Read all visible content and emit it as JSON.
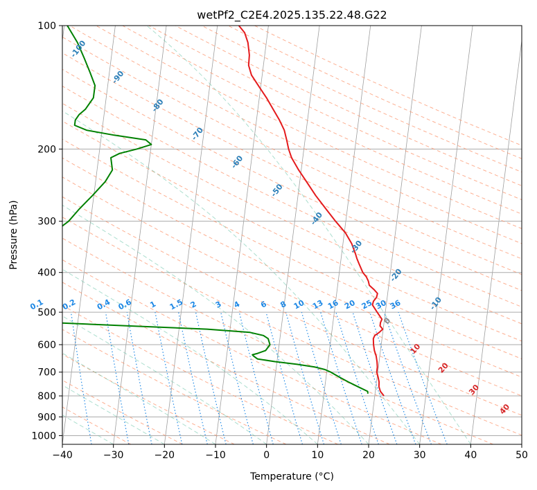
{
  "chart_data": {
    "type": "skew-t",
    "title": "wetPf2_C2E4.2025.135.22.48.G22",
    "xlabel": "Temperature (°C)",
    "ylabel": "Pressure (hPa)",
    "xlim": [
      -40,
      50
    ],
    "ylim": [
      1050,
      100
    ],
    "y_scale": "log",
    "grid": true,
    "x_ticks": [
      -40,
      -30,
      -20,
      -10,
      0,
      10,
      20,
      30,
      40,
      50
    ],
    "x_tick_labels": [
      "−40",
      "−30",
      "−20",
      "−10",
      "0",
      "10",
      "20",
      "30",
      "40",
      "50"
    ],
    "y_ticks": [
      100,
      200,
      300,
      400,
      500,
      600,
      700,
      800,
      900,
      1000
    ],
    "y_tick_labels": [
      "100",
      "200",
      "300",
      "400",
      "500",
      "600",
      "700",
      "800",
      "900",
      "1000"
    ],
    "series": [
      {
        "role": "temperature",
        "color": "#e41a1c",
        "points": [
          [
            800,
            21.8
          ],
          [
            780,
            21.0
          ],
          [
            760,
            20.6
          ],
          [
            740,
            20.5
          ],
          [
            720,
            20.2
          ],
          [
            700,
            19.8
          ],
          [
            680,
            19.8
          ],
          [
            660,
            19.6
          ],
          [
            640,
            19.3
          ],
          [
            620,
            18.8
          ],
          [
            600,
            18.5
          ],
          [
            580,
            18.3
          ],
          [
            570,
            18.5
          ],
          [
            560,
            19.3
          ],
          [
            550,
            19.9
          ],
          [
            540,
            19.3
          ],
          [
            530,
            19.3
          ],
          [
            520,
            19.5
          ],
          [
            500,
            18.4
          ],
          [
            480,
            17.3
          ],
          [
            470,
            17.4
          ],
          [
            460,
            17.9
          ],
          [
            450,
            18.0
          ],
          [
            440,
            17.2
          ],
          [
            430,
            16.2
          ],
          [
            420,
            15.9
          ],
          [
            410,
            15.4
          ],
          [
            400,
            14.6
          ],
          [
            380,
            13.6
          ],
          [
            370,
            13.1
          ],
          [
            360,
            12.7
          ],
          [
            340,
            11.7
          ],
          [
            320,
            10.2
          ],
          [
            300,
            8.0
          ],
          [
            280,
            5.8
          ],
          [
            260,
            3.5
          ],
          [
            240,
            1.3
          ],
          [
            225,
            -0.5
          ],
          [
            210,
            -2.2
          ],
          [
            200,
            -3.0
          ],
          [
            190,
            -3.6
          ],
          [
            180,
            -4.3
          ],
          [
            170,
            -5.5
          ],
          [
            160,
            -7.0
          ],
          [
            150,
            -8.6
          ],
          [
            140,
            -10.5
          ],
          [
            132,
            -12.1
          ],
          [
            125,
            -12.9
          ],
          [
            118,
            -13.0
          ],
          [
            110,
            -13.6
          ],
          [
            104,
            -14.5
          ],
          [
            100,
            -15.8
          ]
        ]
      },
      {
        "role": "dewpoint",
        "color": "#008000",
        "points": [
          [
            790,
            18.6
          ],
          [
            780,
            18.5
          ],
          [
            760,
            16.5
          ],
          [
            740,
            14.5
          ],
          [
            720,
            12.6
          ],
          [
            700,
            10.8
          ],
          [
            690,
            9.6
          ],
          [
            680,
            7.5
          ],
          [
            670,
            4.0
          ],
          [
            660,
            -0.4
          ],
          [
            650,
            -3.9
          ],
          [
            640,
            -4.7
          ],
          [
            635,
            -5.0
          ],
          [
            630,
            -4.0
          ],
          [
            620,
            -2.5
          ],
          [
            600,
            -1.8
          ],
          [
            580,
            -2.3
          ],
          [
            570,
            -3.3
          ],
          [
            560,
            -6.0
          ],
          [
            550,
            -14.5
          ],
          [
            540,
            -30.0
          ],
          [
            530,
            -45.0
          ],
          [
            520,
            -60.0
          ],
          [
            320,
            -47.0
          ],
          [
            300,
            -44.3
          ],
          [
            280,
            -42.5
          ],
          [
            260,
            -40.3
          ],
          [
            240,
            -38.1
          ],
          [
            225,
            -37.0
          ],
          [
            210,
            -37.6
          ],
          [
            205,
            -36.0
          ],
          [
            200,
            -32.7
          ],
          [
            195,
            -30.0
          ],
          [
            190,
            -31.2
          ],
          [
            185,
            -37.5
          ],
          [
            180,
            -43.0
          ],
          [
            175,
            -45.5
          ],
          [
            170,
            -45.5
          ],
          [
            165,
            -44.9
          ],
          [
            160,
            -43.8
          ],
          [
            150,
            -42.5
          ],
          [
            140,
            -42.5
          ],
          [
            130,
            -43.8
          ],
          [
            120,
            -45.3
          ],
          [
            110,
            -47.0
          ],
          [
            100,
            -49.4
          ]
        ]
      }
    ],
    "dry_adiabats": {
      "style": "dashed",
      "color": "#fc8d62",
      "theta_c": [
        -30,
        -20,
        -10,
        0,
        10,
        20,
        30,
        40,
        50,
        60,
        70,
        80,
        90,
        100,
        110,
        120,
        130,
        140,
        150,
        160,
        170,
        180,
        190,
        200,
        210,
        220,
        230
      ]
    },
    "moist_adiabats": {
      "style": "dashed",
      "color": "#66c2a5",
      "t_start_c": [
        -30,
        -20,
        -10,
        0,
        10,
        20,
        30,
        40
      ]
    },
    "isotherm_labels": {
      "color": "#2c7fb8",
      "values": [
        {
          "temp": -100,
          "text": "-100"
        },
        {
          "temp": -90,
          "text": "-90"
        },
        {
          "temp": -80,
          "text": "-80"
        },
        {
          "temp": -70,
          "text": "-70"
        },
        {
          "temp": -60,
          "text": "-60"
        },
        {
          "temp": -50,
          "text": "-50"
        },
        {
          "temp": -40,
          "text": "-40"
        },
        {
          "temp": -30,
          "text": "-30"
        },
        {
          "temp": -20,
          "text": "-20"
        },
        {
          "temp": -10,
          "text": "-10"
        }
      ]
    },
    "mixing_ratio": {
      "color": "#1e88e5",
      "style": "dotted",
      "label_pressure": 500,
      "values": [
        {
          "w": 0.1,
          "text": "0.1"
        },
        {
          "w": 0.2,
          "text": "0.2"
        },
        {
          "w": 0.4,
          "text": "0.4"
        },
        {
          "w": 0.6,
          "text": "0.6"
        },
        {
          "w": 1,
          "text": "1"
        },
        {
          "w": 1.5,
          "text": "1.5"
        },
        {
          "w": 2,
          "text": "2"
        },
        {
          "w": 3,
          "text": "3"
        },
        {
          "w": 4,
          "text": "4"
        },
        {
          "w": 6,
          "text": "6"
        },
        {
          "w": 8,
          "text": "8"
        },
        {
          "w": 10,
          "text": "10"
        },
        {
          "w": 13,
          "text": "13"
        },
        {
          "w": 16,
          "text": "16"
        },
        {
          "w": 20,
          "text": "20"
        },
        {
          "w": 25,
          "text": "25"
        },
        {
          "w": 30,
          "text": "30"
        },
        {
          "w": 36,
          "text": "36"
        }
      ]
    },
    "warm_isotherm_labels": [
      {
        "temp": 0,
        "text": "0",
        "color": "#888888",
        "x": 24,
        "p": 530
      },
      {
        "temp": 10,
        "text": "10",
        "color": "#d62728",
        "x": 29.5,
        "p": 620
      },
      {
        "temp": 20,
        "text": "20",
        "color": "#d62728",
        "x": 35,
        "p": 690
      },
      {
        "temp": 30,
        "text": "30",
        "color": "#d62728",
        "x": 41,
        "p": 780
      },
      {
        "temp": 40,
        "text": "40",
        "color": "#d62728",
        "x": 47,
        "p": 870
      }
    ]
  }
}
